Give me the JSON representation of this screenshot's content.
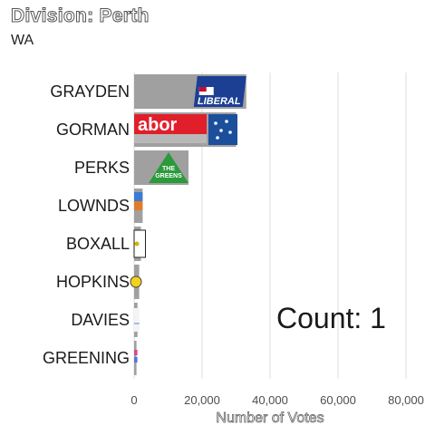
{
  "header": {
    "title": "Division: Perth",
    "subtitle": "WA"
  },
  "overlay": {
    "count_text": "Count:  1"
  },
  "chart_data": {
    "type": "bar",
    "orientation": "horizontal",
    "title": "Division: Perth",
    "subtitle": "WA",
    "xlabel": "Number of Votes",
    "ylabel": "",
    "categories": [
      "GRAYDEN",
      "GORMAN",
      "PERKS",
      "LOWNDS",
      "BOXALL",
      "HOPKINS",
      "DAVIES",
      "GREENING"
    ],
    "values": [
      33000,
      30000,
      16000,
      2500,
      2000,
      1500,
      1000,
      700
    ],
    "xlim": [
      0,
      85000
    ],
    "xticks": [
      0,
      20000,
      40000,
      60000,
      80000
    ],
    "xtick_labels": [
      "0",
      "20,000",
      "40,000",
      "60,000",
      "80,000"
    ],
    "grid": "vertical",
    "bar_fill": [
      "Liberal logo",
      "Labor logo",
      "The Greens logo",
      "party logo",
      "party logo",
      "party logo",
      "party logo",
      "party logo"
    ],
    "logo_text": {
      "liberal": "LIBERAL",
      "labor": "abor",
      "greens_line1": "THE",
      "greens_line2": "GREENS"
    },
    "colors": {
      "bar_bg": "#a0a0a0",
      "grid": "#e2e2e2",
      "liberal_blue": "#1c3f94",
      "labor_red": "#e11f2b",
      "labor_blue": "#1b4f9c",
      "greens_green": "#2a9a3b"
    }
  }
}
